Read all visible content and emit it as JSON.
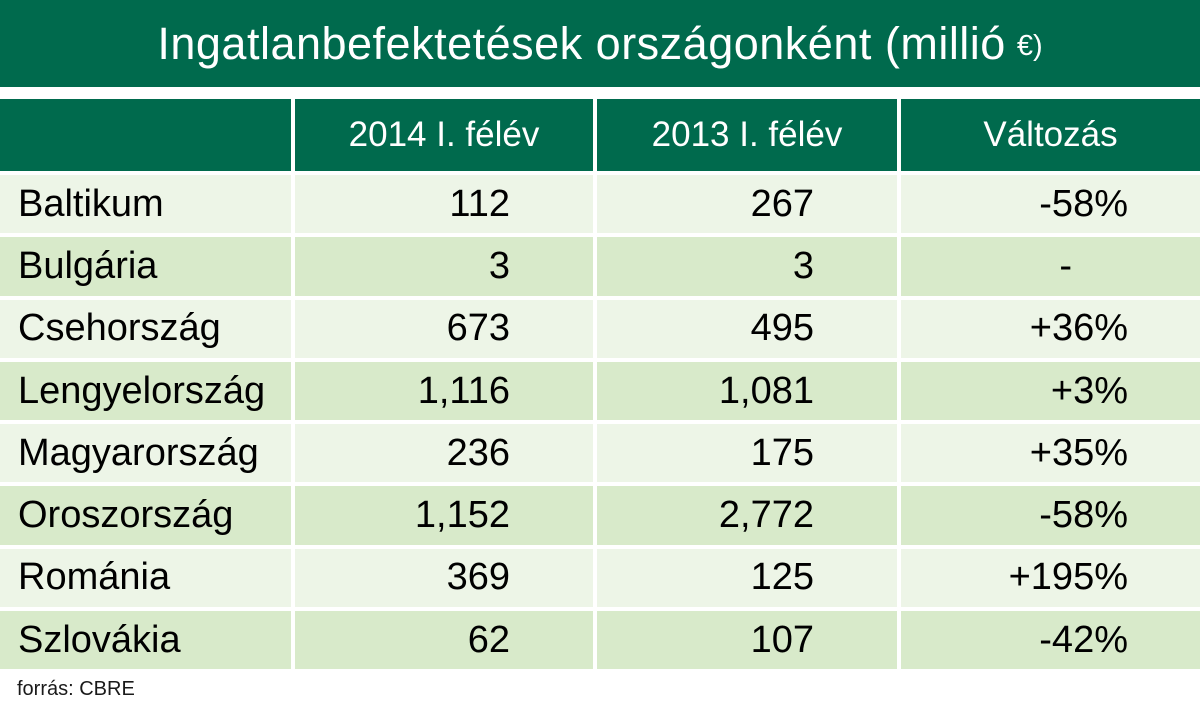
{
  "title": {
    "main": "Ingatlanbefektetések országonként (millió",
    "unit": "€)"
  },
  "table": {
    "columns": [
      "",
      "2014 I. félév",
      "2013 I. félév",
      "Változás"
    ],
    "rows": [
      {
        "country": "Baltikum",
        "h1_2014": "112",
        "h1_2013": "267",
        "change": "-58%"
      },
      {
        "country": "Bulgária",
        "h1_2014": "3",
        "h1_2013": "3",
        "change": "-"
      },
      {
        "country": "Csehország",
        "h1_2014": "673",
        "h1_2013": "495",
        "change": "+36%"
      },
      {
        "country": "Lengyelország",
        "h1_2014": "1,116",
        "h1_2013": "1,081",
        "change": "+3%"
      },
      {
        "country": "Magyarország",
        "h1_2014": "236",
        "h1_2013": "175",
        "change": "+35%"
      },
      {
        "country": "Oroszország",
        "h1_2014": "1,152",
        "h1_2013": "2,772",
        "change": "-58%"
      },
      {
        "country": "Románia",
        "h1_2014": "369",
        "h1_2013": "125",
        "change": "+195%"
      },
      {
        "country": "Szlovákia",
        "h1_2014": "62",
        "h1_2013": "107",
        "change": "-42%"
      }
    ]
  },
  "footer": {
    "source_label": "forrás: CBRE"
  },
  "colors": {
    "header_green": "#006A4D",
    "row_light": "#EDF5E7",
    "row_dark": "#D8EACA",
    "title_text": "#FFFFFF",
    "body_text": "#000000"
  },
  "chart_data": {
    "type": "table",
    "title": "Ingatlanbefektetések országonként (millió €)",
    "unit": "millió €",
    "columns": [
      "",
      "2014 I. félév",
      "2013 I. félév",
      "Változás"
    ],
    "rows": [
      [
        "Baltikum",
        112,
        267,
        "-58%"
      ],
      [
        "Bulgária",
        3,
        3,
        "-"
      ],
      [
        "Csehország",
        673,
        495,
        "+36%"
      ],
      [
        "Lengyelország",
        1116,
        1081,
        "+3%"
      ],
      [
        "Magyarország",
        236,
        175,
        "+35%"
      ],
      [
        "Oroszország",
        1152,
        2772,
        "-58%"
      ],
      [
        "Románia",
        369,
        125,
        "+195%"
      ],
      [
        "Szlovákia",
        62,
        107,
        "-42%"
      ]
    ],
    "source": "forrás: CBRE"
  }
}
